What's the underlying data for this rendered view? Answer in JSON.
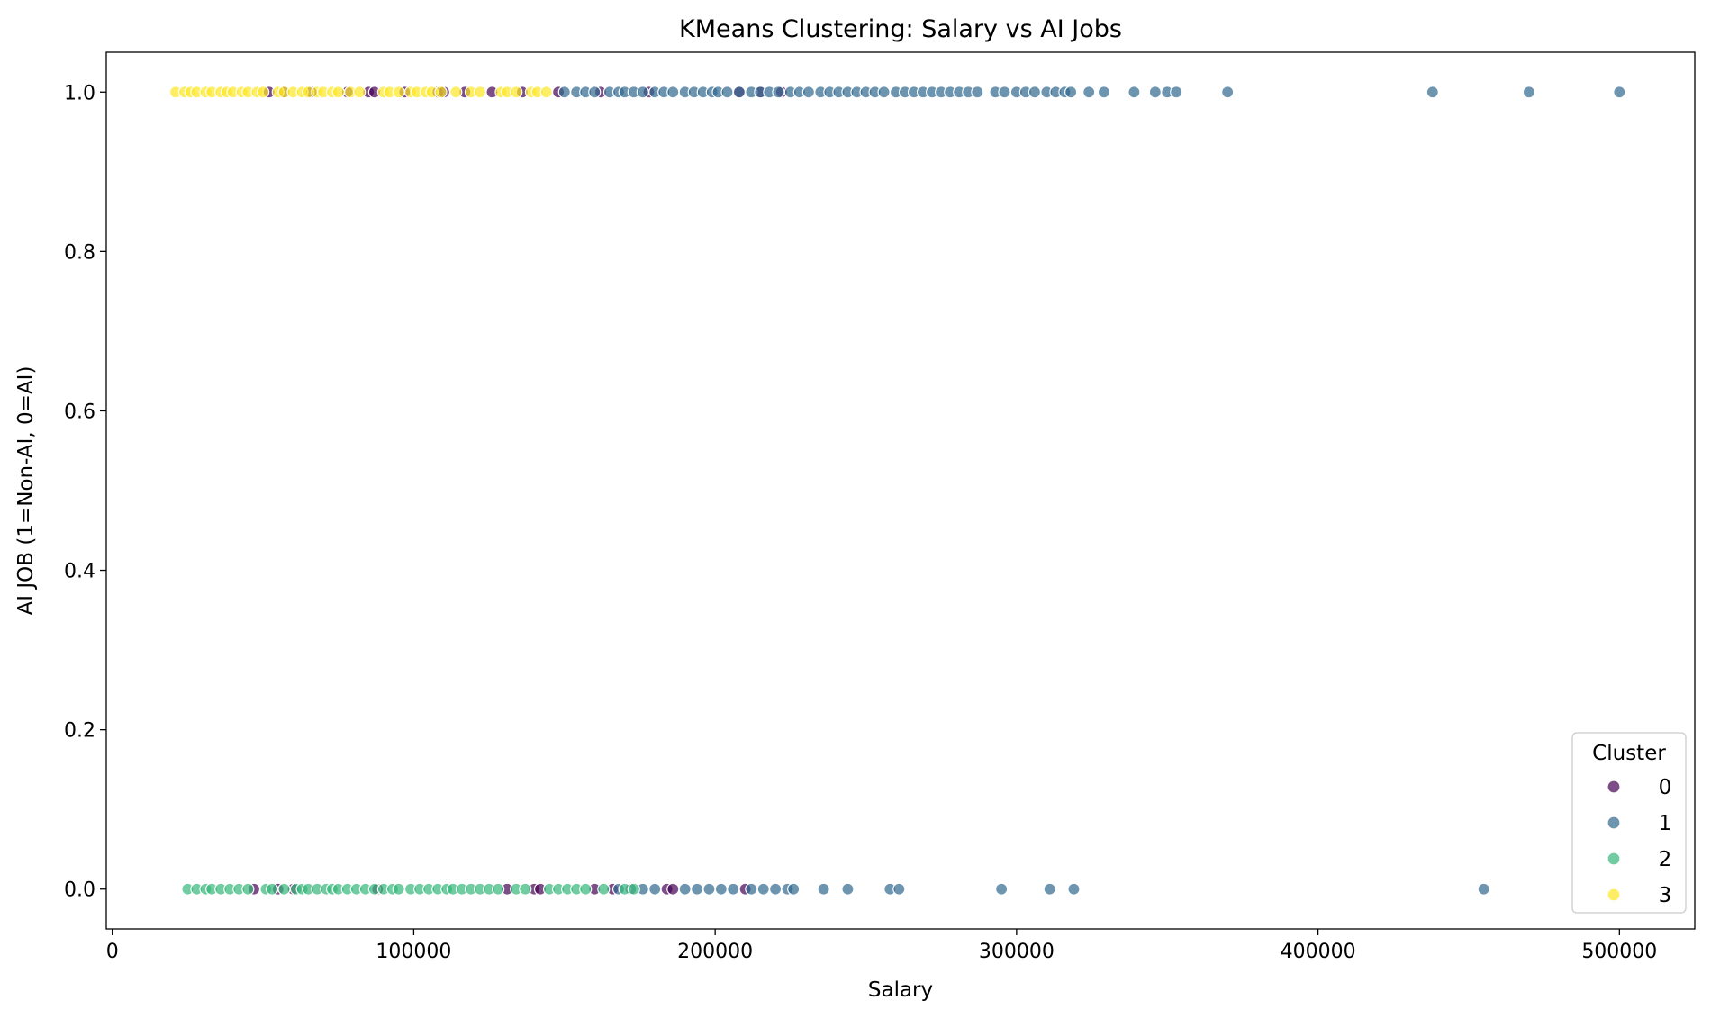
{
  "chart_data": {
    "type": "scatter",
    "title": "KMeans Clustering: Salary vs AI Jobs",
    "xlabel": "Salary",
    "ylabel": "AI JOB (1=Non-AI, 0=AI)",
    "xlim": [
      -2000,
      525000
    ],
    "ylim": [
      -0.05,
      1.05
    ],
    "xticks": [
      0,
      100000,
      200000,
      300000,
      400000,
      500000
    ],
    "xtick_labels": [
      "0",
      "100000",
      "200000",
      "300000",
      "400000",
      "500000"
    ],
    "yticks": [
      0.0,
      0.2,
      0.4,
      0.6,
      0.8,
      1.0
    ],
    "ytick_labels": [
      "0.0",
      "0.2",
      "0.4",
      "0.6",
      "0.8",
      "1.0"
    ],
    "grid": false,
    "legend": {
      "title": "Cluster",
      "placement": "lower right"
    },
    "series": [
      {
        "name": "0",
        "color": "#440154",
        "points": [
          [
            52000,
            1
          ],
          [
            57000,
            1
          ],
          [
            66000,
            1
          ],
          [
            78000,
            1
          ],
          [
            85000,
            1
          ],
          [
            87000,
            1
          ],
          [
            97000,
            1
          ],
          [
            108000,
            1
          ],
          [
            110000,
            1
          ],
          [
            117000,
            1
          ],
          [
            126000,
            1
          ],
          [
            136000,
            1
          ],
          [
            148000,
            1
          ],
          [
            162000,
            1
          ],
          [
            178000,
            1
          ],
          [
            208000,
            1
          ],
          [
            215000,
            1
          ],
          [
            222000,
            1
          ],
          [
            47000,
            0
          ],
          [
            55000,
            0
          ],
          [
            60000,
            0
          ],
          [
            88000,
            0
          ],
          [
            131000,
            0
          ],
          [
            140000,
            0
          ],
          [
            142000,
            0
          ],
          [
            160000,
            0
          ],
          [
            166000,
            0
          ],
          [
            184000,
            0
          ],
          [
            186000,
            0
          ],
          [
            210000,
            0
          ]
        ]
      },
      {
        "name": "1",
        "color": "#31688e",
        "points": [
          [
            150000,
            1
          ],
          [
            154000,
            1
          ],
          [
            157000,
            1
          ],
          [
            160000,
            1
          ],
          [
            165000,
            1
          ],
          [
            168000,
            1
          ],
          [
            170000,
            1
          ],
          [
            173000,
            1
          ],
          [
            176000,
            1
          ],
          [
            180000,
            1
          ],
          [
            183000,
            1
          ],
          [
            186000,
            1
          ],
          [
            190000,
            1
          ],
          [
            193000,
            1
          ],
          [
            196000,
            1
          ],
          [
            199000,
            1
          ],
          [
            201000,
            1
          ],
          [
            204000,
            1
          ],
          [
            208000,
            1
          ],
          [
            212000,
            1
          ],
          [
            215000,
            1
          ],
          [
            218000,
            1
          ],
          [
            221000,
            1
          ],
          [
            225000,
            1
          ],
          [
            228000,
            1
          ],
          [
            231000,
            1
          ],
          [
            235000,
            1
          ],
          [
            238000,
            1
          ],
          [
            241000,
            1
          ],
          [
            244000,
            1
          ],
          [
            247000,
            1
          ],
          [
            250000,
            1
          ],
          [
            253000,
            1
          ],
          [
            256000,
            1
          ],
          [
            260000,
            1
          ],
          [
            263000,
            1
          ],
          [
            266000,
            1
          ],
          [
            269000,
            1
          ],
          [
            272000,
            1
          ],
          [
            275000,
            1
          ],
          [
            278000,
            1
          ],
          [
            281000,
            1
          ],
          [
            284000,
            1
          ],
          [
            287000,
            1
          ],
          [
            293000,
            1
          ],
          [
            296000,
            1
          ],
          [
            300000,
            1
          ],
          [
            303000,
            1
          ],
          [
            306000,
            1
          ],
          [
            310000,
            1
          ],
          [
            313000,
            1
          ],
          [
            316000,
            1
          ],
          [
            318000,
            1
          ],
          [
            324000,
            1
          ],
          [
            329000,
            1
          ],
          [
            339000,
            1
          ],
          [
            346000,
            1
          ],
          [
            350000,
            1
          ],
          [
            353000,
            1
          ],
          [
            370000,
            1
          ],
          [
            438000,
            1
          ],
          [
            470000,
            1
          ],
          [
            500000,
            1
          ],
          [
            168000,
            0
          ],
          [
            172000,
            0
          ],
          [
            176000,
            0
          ],
          [
            180000,
            0
          ],
          [
            190000,
            0
          ],
          [
            194000,
            0
          ],
          [
            198000,
            0
          ],
          [
            202000,
            0
          ],
          [
            206000,
            0
          ],
          [
            212000,
            0
          ],
          [
            216000,
            0
          ],
          [
            220000,
            0
          ],
          [
            224000,
            0
          ],
          [
            226000,
            0
          ],
          [
            236000,
            0
          ],
          [
            244000,
            0
          ],
          [
            258000,
            0
          ],
          [
            261000,
            0
          ],
          [
            295000,
            0
          ],
          [
            311000,
            0
          ],
          [
            319000,
            0
          ],
          [
            455000,
            0
          ]
        ]
      },
      {
        "name": "2",
        "color": "#35b779",
        "points": [
          [
            25000,
            0
          ],
          [
            28000,
            0
          ],
          [
            31000,
            0
          ],
          [
            33000,
            0
          ],
          [
            36000,
            0
          ],
          [
            39000,
            0
          ],
          [
            42000,
            0
          ],
          [
            45000,
            0
          ],
          [
            51000,
            0
          ],
          [
            53000,
            0
          ],
          [
            57000,
            0
          ],
          [
            61000,
            0
          ],
          [
            63000,
            0
          ],
          [
            65000,
            0
          ],
          [
            68000,
            0
          ],
          [
            71000,
            0
          ],
          [
            73000,
            0
          ],
          [
            75000,
            0
          ],
          [
            78000,
            0
          ],
          [
            81000,
            0
          ],
          [
            84000,
            0
          ],
          [
            87000,
            0
          ],
          [
            90000,
            0
          ],
          [
            93000,
            0
          ],
          [
            95000,
            0
          ],
          [
            99000,
            0
          ],
          [
            102000,
            0
          ],
          [
            105000,
            0
          ],
          [
            108000,
            0
          ],
          [
            111000,
            0
          ],
          [
            113000,
            0
          ],
          [
            116000,
            0
          ],
          [
            119000,
            0
          ],
          [
            122000,
            0
          ],
          [
            125000,
            0
          ],
          [
            128000,
            0
          ],
          [
            134000,
            0
          ],
          [
            137000,
            0
          ],
          [
            145000,
            0
          ],
          [
            148000,
            0
          ],
          [
            151000,
            0
          ],
          [
            154000,
            0
          ],
          [
            157000,
            0
          ],
          [
            163000,
            0
          ],
          [
            170000,
            0
          ],
          [
            173000,
            0
          ]
        ]
      },
      {
        "name": "3",
        "color": "#fde725",
        "points": [
          [
            21000,
            1
          ],
          [
            24000,
            1
          ],
          [
            26000,
            1
          ],
          [
            28000,
            1
          ],
          [
            31000,
            1
          ],
          [
            33000,
            1
          ],
          [
            36000,
            1
          ],
          [
            38000,
            1
          ],
          [
            40000,
            1
          ],
          [
            43000,
            1
          ],
          [
            45000,
            1
          ],
          [
            48000,
            1
          ],
          [
            50000,
            1
          ],
          [
            55000,
            1
          ],
          [
            57000,
            1
          ],
          [
            60000,
            1
          ],
          [
            63000,
            1
          ],
          [
            65000,
            1
          ],
          [
            68000,
            1
          ],
          [
            70000,
            1
          ],
          [
            73000,
            1
          ],
          [
            75000,
            1
          ],
          [
            79000,
            1
          ],
          [
            82000,
            1
          ],
          [
            90000,
            1
          ],
          [
            92000,
            1
          ],
          [
            95000,
            1
          ],
          [
            99000,
            1
          ],
          [
            101000,
            1
          ],
          [
            104000,
            1
          ],
          [
            106000,
            1
          ],
          [
            109000,
            1
          ],
          [
            114000,
            1
          ],
          [
            119000,
            1
          ],
          [
            122000,
            1
          ],
          [
            129000,
            1
          ],
          [
            131000,
            1
          ],
          [
            134000,
            1
          ],
          [
            139000,
            1
          ],
          [
            141000,
            1
          ],
          [
            144000,
            1
          ]
        ]
      }
    ]
  }
}
